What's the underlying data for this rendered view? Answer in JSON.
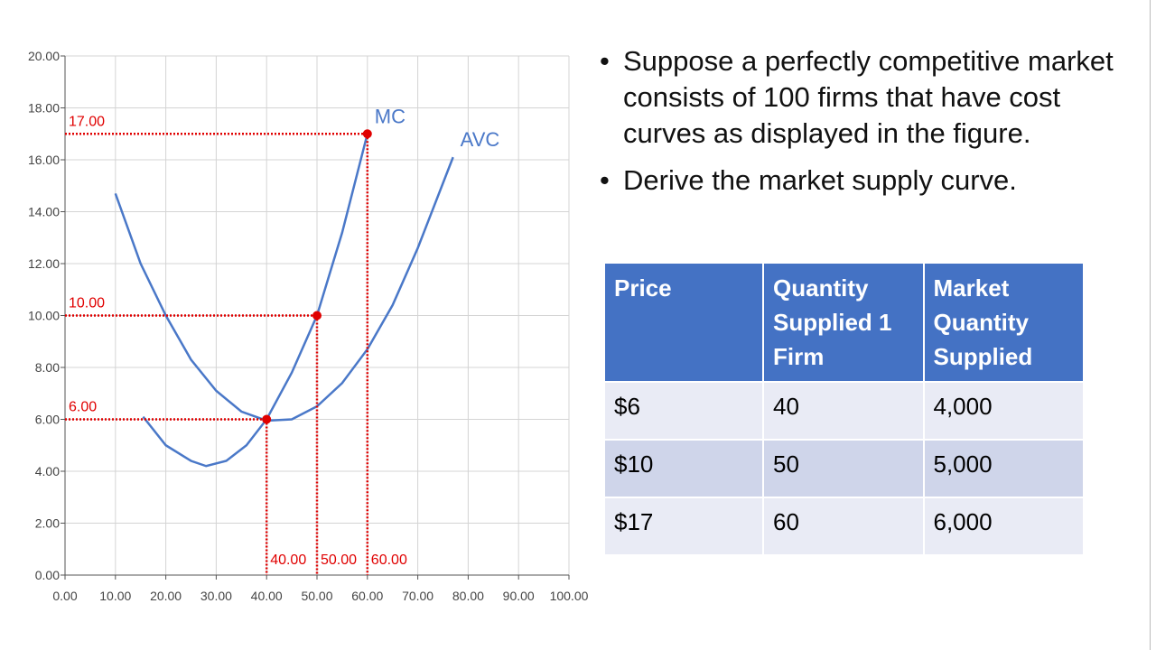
{
  "chart_data": {
    "type": "line",
    "series": [
      {
        "name": "MC",
        "color": "#4a78c8",
        "x": [
          15.5,
          20,
          25,
          28,
          32,
          36,
          40,
          45,
          50,
          55,
          60
        ],
        "values": [
          6.1,
          5.0,
          4.4,
          4.2,
          4.4,
          5.0,
          6.0,
          7.8,
          10,
          13.2,
          17
        ]
      },
      {
        "name": "AVC",
        "color": "#4a78c8",
        "x": [
          10,
          15,
          20,
          25,
          30,
          35,
          40,
          45,
          50,
          55,
          60,
          65,
          70,
          77
        ],
        "values": [
          14.7,
          12.0,
          10.0,
          8.3,
          7.1,
          6.3,
          5.95,
          6.0,
          6.5,
          7.4,
          8.7,
          10.4,
          12.6,
          16.1
        ]
      }
    ],
    "reference_points": {
      "color": "#e00000",
      "x": [
        40,
        50,
        60
      ],
      "y": [
        6,
        10,
        17
      ],
      "x_labels": [
        "40.00",
        "50.00",
        "60.00"
      ],
      "y_labels": [
        "6.00",
        "10.00",
        "17.00"
      ]
    },
    "xlim": [
      0,
      100
    ],
    "xticks": [
      {
        "value": 0,
        "label": "0.00"
      },
      {
        "value": 10,
        "label": "10.00"
      },
      {
        "value": 20,
        "label": "20.00"
      },
      {
        "value": 30,
        "label": "30.00"
      },
      {
        "value": 40,
        "label": "40.00"
      },
      {
        "value": 50,
        "label": "50.00"
      },
      {
        "value": 60,
        "label": "60.00"
      },
      {
        "value": 70,
        "label": "70.00"
      },
      {
        "value": 80,
        "label": "80.00"
      },
      {
        "value": 90,
        "label": "90.00"
      },
      {
        "value": 100,
        "label": "100.00"
      }
    ],
    "ylim": [
      0,
      20
    ],
    "yticks": [
      {
        "value": 0,
        "label": "0.00"
      },
      {
        "value": 2,
        "label": "2.00"
      },
      {
        "value": 4,
        "label": "4.00"
      },
      {
        "value": 6,
        "label": "6.00"
      },
      {
        "value": 8,
        "label": "8.00"
      },
      {
        "value": 10,
        "label": "10.00"
      },
      {
        "value": 12,
        "label": "12.00"
      },
      {
        "value": 14,
        "label": "14.00"
      },
      {
        "value": 16,
        "label": "16.00"
      },
      {
        "value": 18,
        "label": "18.00"
      },
      {
        "value": 20,
        "label": "20.00"
      }
    ],
    "grid": true
  },
  "bullets": [
    "Suppose a perfectly competitive market consists of 100 firms that have cost curves as displayed in the figure.",
    "Derive the market supply curve."
  ],
  "table": {
    "header": [
      "Price",
      "Quantity Supplied 1 Firm",
      "Market Quantity Supplied"
    ],
    "rows": [
      [
        "$6",
        "40",
        "4,000"
      ],
      [
        "$10",
        "50",
        "5,000"
      ],
      [
        "$17",
        "60",
        "6,000"
      ]
    ]
  }
}
